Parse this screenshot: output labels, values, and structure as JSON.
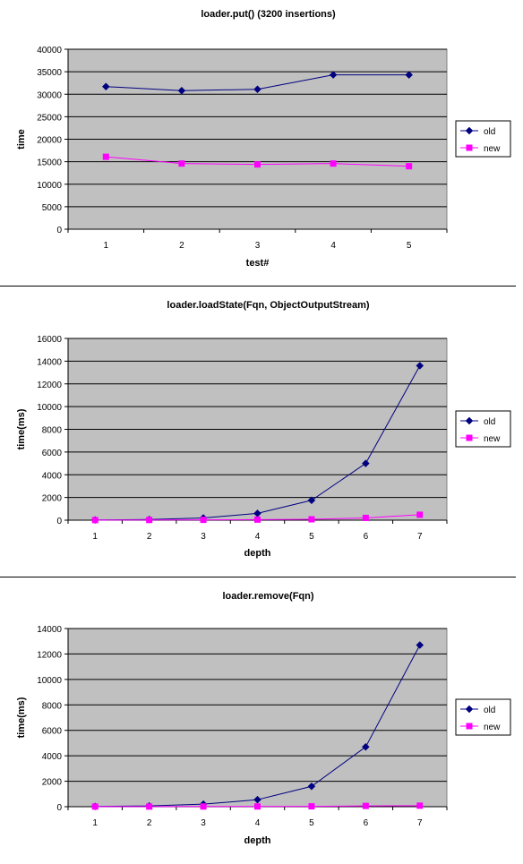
{
  "colors": {
    "plot_background": "#c0c0c0",
    "gridline": "#000000",
    "old_series": "#000080",
    "new_series": "#ff00ff"
  },
  "chart_data": [
    {
      "type": "line",
      "title": "loader.put() (3200 insertions)",
      "xlabel": "test#",
      "ylabel": "time",
      "categories": [
        "1",
        "2",
        "3",
        "4",
        "5"
      ],
      "ylim": [
        0,
        40000
      ],
      "yticks": [
        0,
        5000,
        10000,
        15000,
        20000,
        25000,
        30000,
        35000,
        40000
      ],
      "grid": true,
      "legend_position": "right",
      "series": [
        {
          "name": "old",
          "marker": "diamond",
          "values": [
            31700,
            30800,
            31100,
            34300,
            34300
          ]
        },
        {
          "name": "new",
          "marker": "square",
          "values": [
            16100,
            14600,
            14400,
            14600,
            14000
          ]
        }
      ]
    },
    {
      "type": "line",
      "title": "loader.loadState(Fqn, ObjectOutputStream)",
      "xlabel": "depth",
      "ylabel": "time(ms)",
      "categories": [
        "1",
        "2",
        "3",
        "4",
        "5",
        "6",
        "7"
      ],
      "ylim": [
        0,
        16000
      ],
      "yticks": [
        0,
        2000,
        4000,
        6000,
        8000,
        10000,
        12000,
        14000,
        16000
      ],
      "grid": true,
      "legend_position": "right",
      "series": [
        {
          "name": "old",
          "marker": "diamond",
          "values": [
            20,
            60,
            200,
            600,
            1750,
            5000,
            13600
          ]
        },
        {
          "name": "new",
          "marker": "square",
          "values": [
            10,
            20,
            30,
            50,
            80,
            200,
            480
          ]
        }
      ]
    },
    {
      "type": "line",
      "title": "loader.remove(Fqn)",
      "xlabel": "depth",
      "ylabel": "time(ms)",
      "categories": [
        "1",
        "2",
        "3",
        "4",
        "5",
        "6",
        "7"
      ],
      "ylim": [
        0,
        14000
      ],
      "yticks": [
        0,
        2000,
        4000,
        6000,
        8000,
        10000,
        12000,
        14000
      ],
      "grid": true,
      "legend_position": "right",
      "series": [
        {
          "name": "old",
          "marker": "diamond",
          "values": [
            20,
            60,
            200,
            550,
            1600,
            4700,
            12700
          ]
        },
        {
          "name": "new",
          "marker": "square",
          "values": [
            10,
            10,
            15,
            20,
            30,
            60,
            80
          ]
        }
      ]
    }
  ]
}
